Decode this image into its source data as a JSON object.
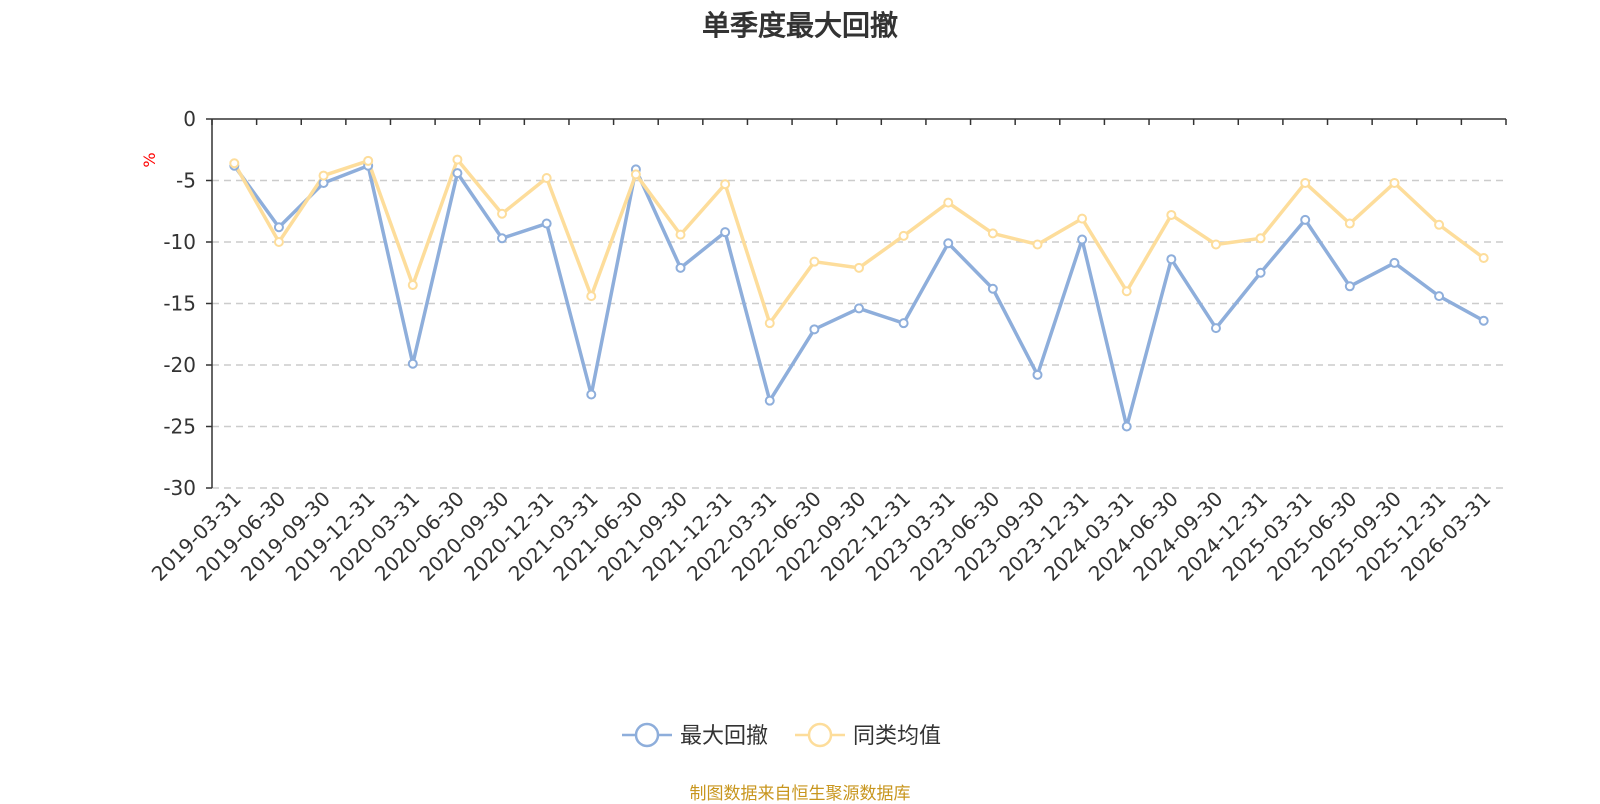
{
  "chart_data": {
    "type": "line",
    "title": "单季度最大回撤",
    "ylabel": "%",
    "xlabel": "",
    "ylim": [
      -30,
      0
    ],
    "yticks": [
      0,
      -5,
      -10,
      -15,
      -20,
      -25,
      -30
    ],
    "grid": "horizontal-dashed",
    "legend_position": "bottom-center",
    "categories": [
      "2019-03-31",
      "2019-06-30",
      "2019-09-30",
      "2019-12-31",
      "2020-03-31",
      "2020-06-30",
      "2020-09-30",
      "2020-12-31",
      "2021-03-31",
      "2021-06-30",
      "2021-09-30",
      "2021-12-31",
      "2022-03-31",
      "2022-06-30",
      "2022-09-30",
      "2022-12-31",
      "2023-03-31",
      "2023-06-30",
      "2023-09-30",
      "2023-12-31",
      "2024-03-31",
      "2024-06-30",
      "2024-09-30",
      "2024-12-31",
      "2025-03-31",
      "2025-06-30",
      "2025-09-30",
      "2025-12-31",
      "2026-03-31"
    ],
    "series": [
      {
        "name": "最大回撤",
        "color": "#8eaedb",
        "values": [
          -3.8,
          -8.8,
          -5.2,
          -3.8,
          -19.9,
          -4.4,
          -9.7,
          -8.5,
          -22.4,
          -4.1,
          -12.1,
          -9.2,
          -22.9,
          -17.1,
          -15.4,
          -16.6,
          -10.1,
          -13.8,
          -20.8,
          -9.8,
          -25.0,
          -11.4,
          -17.0,
          -12.5,
          -8.2,
          -13.6,
          -11.7,
          -14.4,
          -16.4
        ]
      },
      {
        "name": "同类均值",
        "color": "#fddd9b",
        "values": [
          -3.6,
          -10.0,
          -4.6,
          -3.4,
          -13.5,
          -3.3,
          -7.7,
          -4.8,
          -14.4,
          -4.5,
          -9.4,
          -5.3,
          -16.6,
          -11.6,
          -12.1,
          -9.5,
          -6.8,
          -9.3,
          -10.2,
          -8.1,
          -14.0,
          -7.8,
          -10.2,
          -9.7,
          -5.2,
          -8.5,
          -5.2,
          -8.6,
          -11.3
        ]
      }
    ]
  },
  "footer": {
    "source": "制图数据来自恒生聚源数据库"
  }
}
